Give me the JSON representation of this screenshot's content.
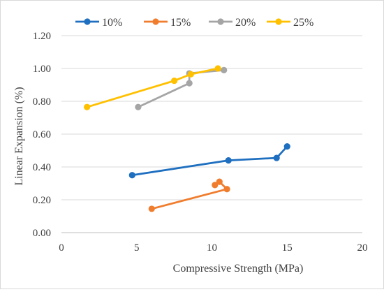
{
  "chart_data": {
    "type": "scatter",
    "title": "",
    "xlabel": "Compressive Strength (MPa)",
    "ylabel": "Linear Expansion (%)",
    "xlim": [
      0,
      20
    ],
    "ylim": [
      0,
      1.2
    ],
    "x_ticks": [
      "0",
      "5",
      "10",
      "15",
      "20"
    ],
    "y_ticks": [
      "0.00",
      "0.20",
      "0.40",
      "0.60",
      "0.80",
      "1.00",
      "1.20"
    ],
    "grid": "horizontal",
    "legend_position": "top",
    "marker": "circle",
    "line": "straight",
    "series": [
      {
        "name": "10%",
        "color": "#1f6fc0",
        "points": [
          [
            4.7,
            0.35
          ],
          [
            11.1,
            0.44
          ],
          [
            14.3,
            0.455
          ],
          [
            15.0,
            0.525
          ]
        ]
      },
      {
        "name": "15%",
        "color": "#f07d2e",
        "points": [
          [
            6.0,
            0.145
          ],
          [
            11.0,
            0.265
          ],
          [
            10.5,
            0.31
          ],
          [
            10.2,
            0.29
          ]
        ]
      },
      {
        "name": "20%",
        "color": "#a5a5a5",
        "points": [
          [
            5.1,
            0.765
          ],
          [
            8.5,
            0.91
          ],
          [
            8.5,
            0.97
          ],
          [
            10.8,
            0.99
          ]
        ]
      },
      {
        "name": "25%",
        "color": "#ffc000",
        "points": [
          [
            1.7,
            0.765
          ],
          [
            7.5,
            0.925
          ],
          [
            8.6,
            0.965
          ],
          [
            10.4,
            1.0
          ]
        ]
      }
    ]
  }
}
